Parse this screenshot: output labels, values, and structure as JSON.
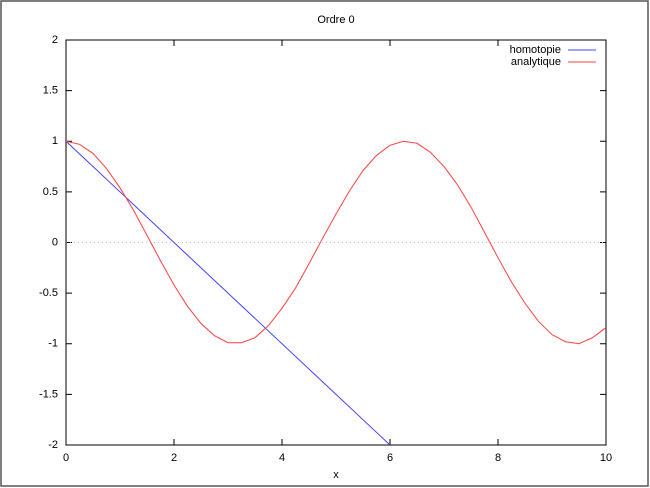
{
  "chart_data": {
    "type": "line",
    "title": "Ordre 0",
    "xlabel": "x",
    "xlim": [
      0,
      10
    ],
    "ylim": [
      -2,
      2
    ],
    "xticks": [
      0,
      2,
      4,
      6,
      8,
      10
    ],
    "yticks": [
      -2,
      -1.5,
      -1,
      -0.5,
      0,
      0.5,
      1,
      1.5,
      2
    ],
    "zeroaxis": true,
    "legend": "top-right",
    "series": [
      {
        "name": "homotopie",
        "color": "#4040ff",
        "x": [
          0,
          6
        ],
        "values": [
          1,
          -2
        ]
      },
      {
        "name": "analytique",
        "color": "#ff4040",
        "x": [
          0,
          0.25,
          0.5,
          0.75,
          1,
          1.25,
          1.5,
          1.75,
          2,
          2.25,
          2.5,
          2.75,
          3,
          3.25,
          3.5,
          3.75,
          4,
          4.25,
          4.5,
          4.75,
          5,
          5.25,
          5.5,
          5.75,
          6,
          6.25,
          6.5,
          6.75,
          7,
          7.25,
          7.5,
          7.75,
          8,
          8.25,
          8.5,
          8.75,
          9,
          9.25,
          9.5,
          9.75,
          10
        ],
        "values": [
          1,
          0.97,
          0.88,
          0.73,
          0.54,
          0.32,
          0.07,
          -0.18,
          -0.42,
          -0.63,
          -0.8,
          -0.92,
          -0.99,
          -0.99,
          -0.94,
          -0.82,
          -0.65,
          -0.45,
          -0.21,
          0.04,
          0.28,
          0.51,
          0.71,
          0.86,
          0.96,
          1,
          0.98,
          0.89,
          0.75,
          0.57,
          0.35,
          0.1,
          -0.15,
          -0.39,
          -0.6,
          -0.78,
          -0.91,
          -0.98,
          -1,
          -0.94,
          -0.84
        ]
      }
    ]
  }
}
